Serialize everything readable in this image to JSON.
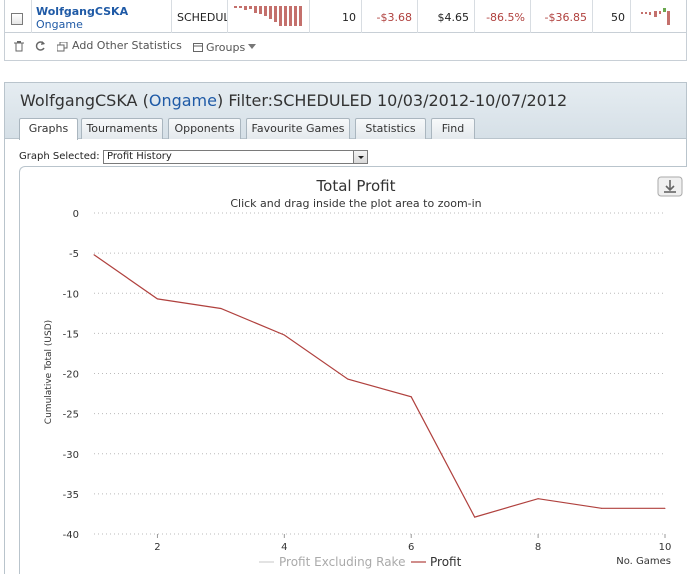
{
  "table_row": {
    "player": "WolfgangCSKA",
    "site": "Ongame",
    "filter": "SCHEDUL",
    "games": "10",
    "profit": "-$3.68",
    "stake": "$4.65",
    "roi": "-86.5%",
    "total": "-$36.85",
    "sessions": "50"
  },
  "toolbar": {
    "add_stats": "Add Other Statistics",
    "groups": "Groups"
  },
  "panel": {
    "name": "WolfgangCSKA",
    "site": "Ongame",
    "filter": "Filter:SCHEDULED 10/03/2012-10/07/2012"
  },
  "tabs": [
    "Graphs",
    "Tournaments",
    "Opponents",
    "Favourite Games",
    "Statistics",
    "Find"
  ],
  "graph_selector": {
    "label": "Graph Selected:",
    "value": "Profit History"
  },
  "colors": {
    "profit_line": "#b0413e",
    "rake_line": "#d0d0d0",
    "link": "#1f5aa6",
    "negative": "#b0413e"
  },
  "chart_data": {
    "type": "line",
    "title": "Total Profit",
    "subtitle": "Click and drag inside the plot area to zoom-in",
    "xlabel": "No. Games",
    "ylabel": "Cumulative Total (USD)",
    "xlim": [
      1,
      10
    ],
    "ylim": [
      -40,
      0
    ],
    "x_ticks": [
      2,
      4,
      6,
      8,
      10
    ],
    "y_ticks": [
      0,
      -5,
      -10,
      -15,
      -20,
      -25,
      -30,
      -35,
      -40
    ],
    "grid": true,
    "legend_position": "bottom-center",
    "series": [
      {
        "name": "Profit Excluding Rake",
        "x": [],
        "y": []
      },
      {
        "name": "Profit",
        "x": [
          1,
          2,
          3,
          4,
          5,
          6,
          7,
          8,
          9,
          10
        ],
        "y": [
          -5.2,
          -10.7,
          -11.9,
          -15.2,
          -20.7,
          -22.9,
          -37.9,
          -35.6,
          -36.8,
          -36.8
        ]
      }
    ]
  }
}
